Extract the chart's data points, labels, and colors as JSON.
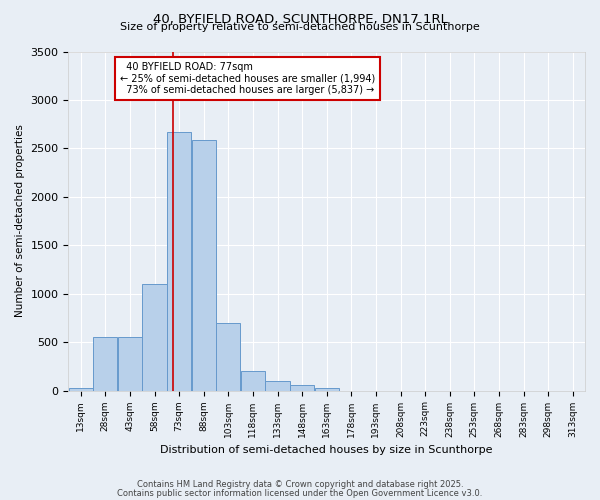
{
  "title1": "40, BYFIELD ROAD, SCUNTHORPE, DN17 1RL",
  "title2": "Size of property relative to semi-detached houses in Scunthorpe",
  "xlabel": "Distribution of semi-detached houses by size in Scunthorpe",
  "ylabel": "Number of semi-detached properties",
  "bar_labels": [
    "13sqm",
    "28sqm",
    "43sqm",
    "58sqm",
    "73sqm",
    "88sqm",
    "103sqm",
    "118sqm",
    "133sqm",
    "148sqm",
    "163sqm",
    "178sqm",
    "193sqm",
    "208sqm",
    "223sqm",
    "238sqm",
    "253sqm",
    "268sqm",
    "283sqm",
    "298sqm",
    "313sqm"
  ],
  "bar_values": [
    30,
    550,
    550,
    1100,
    2670,
    2590,
    700,
    200,
    100,
    55,
    30,
    0,
    0,
    0,
    0,
    0,
    0,
    0,
    0,
    0,
    0
  ],
  "bar_color": "#b8d0ea",
  "bar_edge_color": "#6699cc",
  "property_line_x": 77,
  "property_label": "40 BYFIELD ROAD: 77sqm",
  "pct_smaller": 25,
  "pct_larger": 73,
  "n_smaller": "1,994",
  "n_larger": "5,837",
  "annotation_box_color": "#ffffff",
  "annotation_box_edge": "#cc0000",
  "line_color": "#cc0000",
  "background_color": "#e8eef5",
  "grid_color": "#ffffff",
  "ylim": [
    0,
    3500
  ],
  "footer1": "Contains HM Land Registry data © Crown copyright and database right 2025.",
  "footer2": "Contains public sector information licensed under the Open Government Licence v3.0."
}
